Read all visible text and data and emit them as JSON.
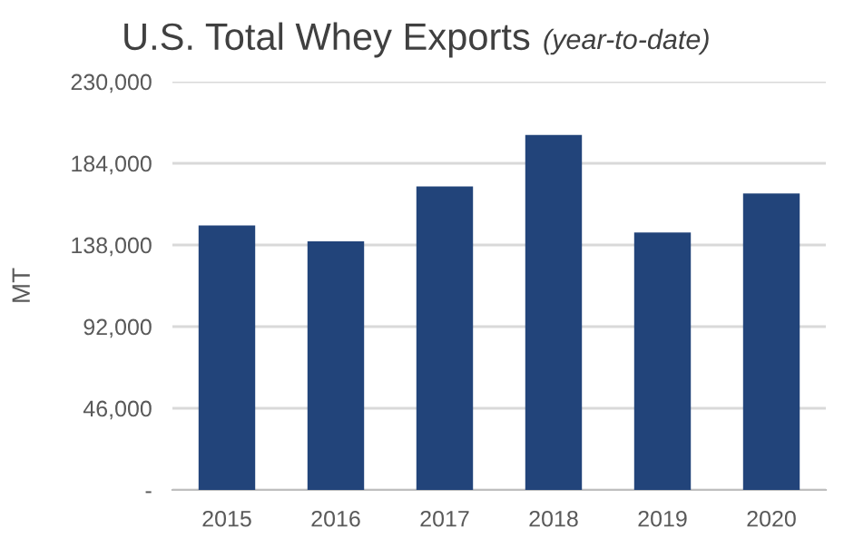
{
  "chart_data": {
    "type": "bar",
    "title": "U.S. Total Whey Exports",
    "subtitle": "(year-to-date)",
    "ylabel": "MT",
    "categories": [
      "2015",
      "2016",
      "2017",
      "2018",
      "2019",
      "2020"
    ],
    "values": [
      149000,
      140000,
      171000,
      200000,
      145000,
      167000
    ],
    "color": "#22447a",
    "ylim": [
      0,
      230000
    ],
    "yticks": [
      {
        "value": 0,
        "label": "-"
      },
      {
        "value": 46000,
        "label": "46,000"
      },
      {
        "value": 92000,
        "label": "92,000"
      },
      {
        "value": 138000,
        "label": "138,000"
      },
      {
        "value": 184000,
        "label": "184,000"
      },
      {
        "value": 230000,
        "label": "230,000"
      }
    ],
    "grid": "y"
  }
}
